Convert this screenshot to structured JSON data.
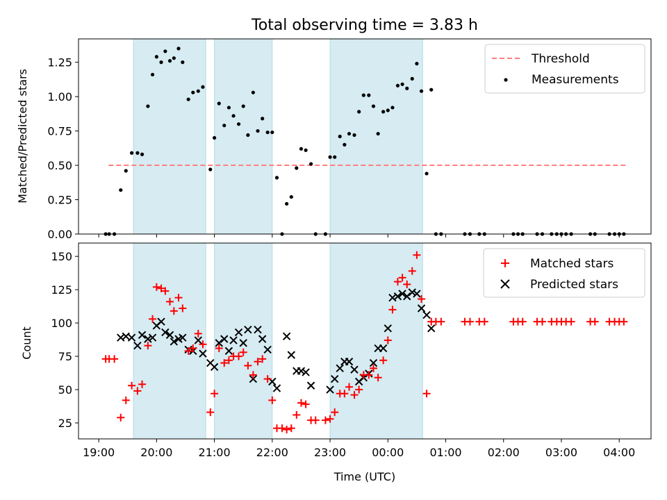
{
  "chart_data": [
    {
      "type": "scatter",
      "title": "Total observing time = 3.83 h",
      "ylabel": "Matched/Predicted stars",
      "xlabel": "",
      "x_unit": "hours since 19:00 UTC",
      "xlim": [
        -0.35,
        9.55
      ],
      "ylim": [
        0,
        1.42
      ],
      "yticks": [
        0.0,
        0.25,
        0.5,
        0.75,
        1.0,
        1.25
      ],
      "ytick_labels": [
        "0.00",
        "0.25",
        "0.50",
        "0.75",
        "1.00",
        "1.25"
      ],
      "legend": {
        "position": "top-right",
        "entries": [
          "Threshold",
          "Measurements"
        ]
      },
      "threshold": {
        "name": "Threshold",
        "value": 0.5,
        "x_start": 0.17,
        "x_end": 9.13,
        "color": "#ff7f7f"
      },
      "shaded_intervals": [
        [
          0.6,
          1.85
        ],
        [
          2.0,
          3.0
        ],
        [
          4.0,
          5.6
        ]
      ],
      "series": [
        {
          "name": "Measurements",
          "color": "#000000",
          "points": [
            [
              0.12,
              0
            ],
            [
              0.18,
              0
            ],
            [
              0.27,
              0
            ],
            [
              0.38,
              0.32
            ],
            [
              0.47,
              0.46
            ],
            [
              0.57,
              0.59
            ],
            [
              0.67,
              0.59
            ],
            [
              0.75,
              0.58
            ],
            [
              0.85,
              0.93
            ],
            [
              0.93,
              1.16
            ],
            [
              1.0,
              1.29
            ],
            [
              1.08,
              1.25
            ],
            [
              1.15,
              1.33
            ],
            [
              1.23,
              1.26
            ],
            [
              1.3,
              1.28
            ],
            [
              1.38,
              1.35
            ],
            [
              1.45,
              1.25
            ],
            [
              1.55,
              0.98
            ],
            [
              1.63,
              1.03
            ],
            [
              1.72,
              1.04
            ],
            [
              1.8,
              1.07
            ],
            [
              1.93,
              0.47
            ],
            [
              2.0,
              0.7
            ],
            [
              2.08,
              0.95
            ],
            [
              2.17,
              0.79
            ],
            [
              2.25,
              0.92
            ],
            [
              2.33,
              0.86
            ],
            [
              2.42,
              0.8
            ],
            [
              2.5,
              0.93
            ],
            [
              2.58,
              0.72
            ],
            [
              2.67,
              1.03
            ],
            [
              2.75,
              0.75
            ],
            [
              2.83,
              0.84
            ],
            [
              2.92,
              0.74
            ],
            [
              3.0,
              0.74
            ],
            [
              3.08,
              0.41
            ],
            [
              3.17,
              0
            ],
            [
              3.25,
              0.22
            ],
            [
              3.33,
              0.27
            ],
            [
              3.42,
              0.48
            ],
            [
              3.5,
              0.62
            ],
            [
              3.58,
              0.61
            ],
            [
              3.67,
              0.51
            ],
            [
              3.75,
              0
            ],
            [
              3.92,
              0
            ],
            [
              4.0,
              0.56
            ],
            [
              4.08,
              0.56
            ],
            [
              4.17,
              0.71
            ],
            [
              4.25,
              0.65
            ],
            [
              4.33,
              0.73
            ],
            [
              4.42,
              0.72
            ],
            [
              4.5,
              0.89
            ],
            [
              4.58,
              1.01
            ],
            [
              4.67,
              1.01
            ],
            [
              4.75,
              0.93
            ],
            [
              4.83,
              0.73
            ],
            [
              4.92,
              0.89
            ],
            [
              5.0,
              0.9
            ],
            [
              5.08,
              0.92
            ],
            [
              5.17,
              1.08
            ],
            [
              5.25,
              1.09
            ],
            [
              5.33,
              1.06
            ],
            [
              5.42,
              1.13
            ],
            [
              5.5,
              1.24
            ],
            [
              5.58,
              1.04
            ],
            [
              5.67,
              0.44
            ],
            [
              5.75,
              1.05
            ],
            [
              5.83,
              0
            ],
            [
              5.92,
              0
            ],
            [
              6.33,
              0
            ],
            [
              6.42,
              0
            ],
            [
              6.58,
              0
            ],
            [
              6.67,
              0
            ],
            [
              7.17,
              0
            ],
            [
              7.25,
              0
            ],
            [
              7.33,
              0
            ],
            [
              7.58,
              0
            ],
            [
              7.67,
              0
            ],
            [
              7.83,
              0
            ],
            [
              7.92,
              0
            ],
            [
              8.0,
              0
            ],
            [
              8.08,
              0
            ],
            [
              8.17,
              0
            ],
            [
              8.5,
              0
            ],
            [
              8.58,
              0
            ],
            [
              8.83,
              0
            ],
            [
              8.92,
              0
            ],
            [
              9.0,
              0
            ],
            [
              9.08,
              0
            ]
          ]
        }
      ]
    },
    {
      "type": "scatter",
      "title": "",
      "ylabel": "Count",
      "xlabel": "Time (UTC)",
      "x_unit": "hours since 19:00 UTC",
      "xlim": [
        -0.35,
        9.55
      ],
      "ylim": [
        13,
        160
      ],
      "yticks": [
        25,
        50,
        75,
        100,
        125,
        150
      ],
      "ytick_labels": [
        "25",
        "50",
        "75",
        "100",
        "125",
        "150"
      ],
      "xticks": [
        0,
        1,
        2,
        3,
        4,
        5,
        6,
        7,
        8,
        9
      ],
      "xtick_labels": [
        "19:00",
        "20:00",
        "21:00",
        "22:00",
        "23:00",
        "00:00",
        "01:00",
        "02:00",
        "03:00",
        "04:00"
      ],
      "legend": {
        "position": "top-right",
        "entries": [
          "Matched stars",
          "Predicted stars"
        ]
      },
      "shaded_intervals": [
        [
          0.6,
          1.85
        ],
        [
          2.0,
          3.0
        ],
        [
          4.0,
          5.6
        ]
      ],
      "series": [
        {
          "name": "Matched stars",
          "marker": "plus",
          "color": "#ff0000",
          "points": [
            [
              0.12,
              73
            ],
            [
              0.18,
              73
            ],
            [
              0.27,
              73
            ],
            [
              0.38,
              29
            ],
            [
              0.47,
              42
            ],
            [
              0.57,
              53
            ],
            [
              0.67,
              49
            ],
            [
              0.75,
              54
            ],
            [
              0.85,
              83
            ],
            [
              0.93,
              103
            ],
            [
              1.0,
              127
            ],
            [
              1.08,
              126
            ],
            [
              1.15,
              124
            ],
            [
              1.23,
              116
            ],
            [
              1.3,
              109
            ],
            [
              1.38,
              119
            ],
            [
              1.45,
              111
            ],
            [
              1.55,
              79
            ],
            [
              1.63,
              81
            ],
            [
              1.72,
              92
            ],
            [
              1.8,
              84
            ],
            [
              1.93,
              33
            ],
            [
              2.0,
              47
            ],
            [
              2.08,
              81
            ],
            [
              2.17,
              70
            ],
            [
              2.25,
              72
            ],
            [
              2.33,
              75
            ],
            [
              2.42,
              75
            ],
            [
              2.5,
              78
            ],
            [
              2.58,
              68
            ],
            [
              2.67,
              61
            ],
            [
              2.75,
              71
            ],
            [
              2.83,
              73
            ],
            [
              2.92,
              58
            ],
            [
              3.0,
              42
            ],
            [
              3.08,
              21
            ],
            [
              3.17,
              21
            ],
            [
              3.25,
              20
            ],
            [
              3.33,
              21
            ],
            [
              3.42,
              31
            ],
            [
              3.5,
              40
            ],
            [
              3.58,
              39
            ],
            [
              3.67,
              27
            ],
            [
              3.75,
              27
            ],
            [
              3.92,
              27
            ],
            [
              4.0,
              28
            ],
            [
              4.08,
              33
            ],
            [
              4.17,
              47
            ],
            [
              4.25,
              47
            ],
            [
              4.33,
              52
            ],
            [
              4.42,
              46
            ],
            [
              4.5,
              50
            ],
            [
              4.58,
              61
            ],
            [
              4.67,
              61
            ],
            [
              4.75,
              66
            ],
            [
              4.83,
              59
            ],
            [
              4.92,
              72
            ],
            [
              5.0,
              87
            ],
            [
              5.08,
              110
            ],
            [
              5.17,
              131
            ],
            [
              5.25,
              134
            ],
            [
              5.33,
              129
            ],
            [
              5.42,
              139
            ],
            [
              5.5,
              151
            ],
            [
              5.58,
              118
            ],
            [
              5.67,
              47
            ],
            [
              5.75,
              101
            ],
            [
              5.83,
              101
            ],
            [
              5.92,
              101
            ],
            [
              6.33,
              101
            ],
            [
              6.42,
              101
            ],
            [
              6.58,
              101
            ],
            [
              6.67,
              101
            ],
            [
              7.17,
              101
            ],
            [
              7.25,
              101
            ],
            [
              7.33,
              101
            ],
            [
              7.58,
              101
            ],
            [
              7.67,
              101
            ],
            [
              7.83,
              101
            ],
            [
              7.92,
              101
            ],
            [
              8.0,
              101
            ],
            [
              8.08,
              101
            ],
            [
              8.17,
              101
            ],
            [
              8.5,
              101
            ],
            [
              8.58,
              101
            ],
            [
              8.83,
              101
            ],
            [
              8.92,
              101
            ],
            [
              9.0,
              101
            ],
            [
              9.08,
              101
            ]
          ]
        },
        {
          "name": "Predicted stars",
          "marker": "x",
          "color": "#000000",
          "points": [
            [
              0.38,
              89
            ],
            [
              0.47,
              90
            ],
            [
              0.57,
              89
            ],
            [
              0.67,
              83
            ],
            [
              0.75,
              91
            ],
            [
              0.85,
              88
            ],
            [
              0.93,
              89
            ],
            [
              1.0,
              98
            ],
            [
              1.08,
              101
            ],
            [
              1.15,
              93
            ],
            [
              1.23,
              91
            ],
            [
              1.3,
              86
            ],
            [
              1.38,
              88
            ],
            [
              1.45,
              89
            ],
            [
              1.55,
              80
            ],
            [
              1.63,
              79
            ],
            [
              1.72,
              87
            ],
            [
              1.8,
              77
            ],
            [
              1.93,
              70
            ],
            [
              2.0,
              67
            ],
            [
              2.08,
              85
            ],
            [
              2.17,
              88
            ],
            [
              2.25,
              79
            ],
            [
              2.33,
              87
            ],
            [
              2.42,
              93
            ],
            [
              2.5,
              85
            ],
            [
              2.58,
              95
            ],
            [
              2.67,
              58
            ],
            [
              2.75,
              95
            ],
            [
              2.83,
              88
            ],
            [
              2.92,
              80
            ],
            [
              3.0,
              56
            ],
            [
              3.08,
              51
            ],
            [
              3.25,
              90
            ],
            [
              3.33,
              76
            ],
            [
              3.42,
              64
            ],
            [
              3.5,
              64
            ],
            [
              3.58,
              63
            ],
            [
              3.67,
              53
            ],
            [
              4.0,
              50
            ],
            [
              4.08,
              58
            ],
            [
              4.17,
              66
            ],
            [
              4.25,
              71
            ],
            [
              4.33,
              71
            ],
            [
              4.42,
              65
            ],
            [
              4.5,
              56
            ],
            [
              4.58,
              59
            ],
            [
              4.67,
              62
            ],
            [
              4.75,
              70
            ],
            [
              4.83,
              81
            ],
            [
              4.92,
              81
            ],
            [
              5.0,
              96
            ],
            [
              5.08,
              119
            ],
            [
              5.17,
              120
            ],
            [
              5.25,
              122
            ],
            [
              5.33,
              120
            ],
            [
              5.42,
              123
            ],
            [
              5.5,
              122
            ],
            [
              5.58,
              111
            ],
            [
              5.67,
              106
            ],
            [
              5.75,
              96
            ]
          ]
        }
      ]
    }
  ]
}
